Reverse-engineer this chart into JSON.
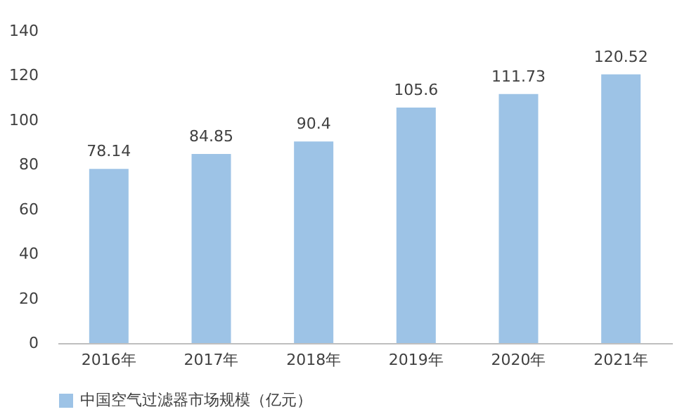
{
  "chart_data": {
    "type": "bar",
    "categories": [
      "2016年",
      "2017年",
      "2018年",
      "2019年",
      "2020年",
      "2021年"
    ],
    "series": [
      {
        "name": "中国空气过滤器市场规模（亿元）",
        "color": "#9dc3e6",
        "values": [
          78.14,
          84.85,
          90.4,
          105.6,
          111.73,
          120.52
        ]
      }
    ],
    "ylim": [
      0,
      140
    ],
    "yticks": [
      0,
      20,
      40,
      60,
      80,
      100,
      120,
      140
    ],
    "data_labels": true,
    "legend": "bottom"
  }
}
